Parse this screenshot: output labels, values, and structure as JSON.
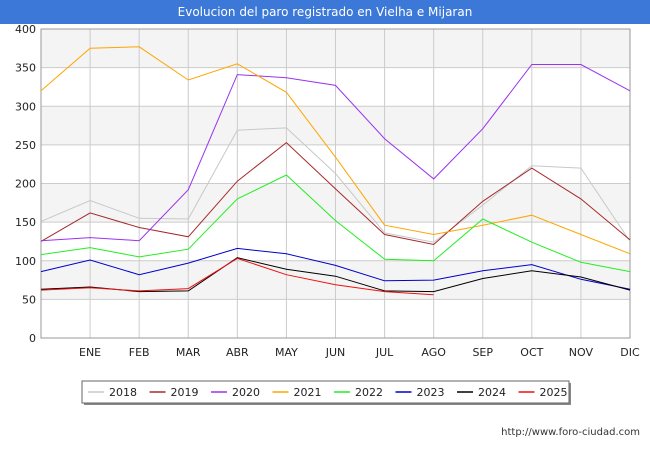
{
  "title": "Evolucion del paro registrado en Vielha e Mijaran",
  "source": "http://www.foro-ciudad.com",
  "colors": {
    "title_bg": "#3b78d8",
    "grid": "#cccccc",
    "band": "#f4f4f4"
  },
  "chart_data": {
    "type": "line",
    "title": "Evolucion del paro registrado en Vielha e Mijaran",
    "x": [
      "",
      "ENE",
      "FEB",
      "MAR",
      "ABR",
      "MAY",
      "JUN",
      "JUL",
      "AGO",
      "SEP",
      "OCT",
      "NOV",
      "DIC"
    ],
    "y_ticks": [
      0,
      50,
      100,
      150,
      200,
      250,
      300,
      350,
      400
    ],
    "ylim": [
      0,
      400
    ],
    "grid": true,
    "legend_position": "bottom",
    "series": [
      {
        "name": "2018",
        "color": "#c8c8c8",
        "values": [
          151,
          178,
          155,
          154,
          269,
          272,
          213,
          136,
          124,
          172,
          223,
          220,
          125
        ]
      },
      {
        "name": "2019",
        "color": "#a52a2a",
        "values": [
          125,
          162,
          143,
          131,
          203,
          253,
          193,
          134,
          121,
          177,
          220,
          180,
          127
        ]
      },
      {
        "name": "2020",
        "color": "#9933ee",
        "values": [
          126,
          130,
          126,
          192,
          341,
          337,
          327,
          258,
          206,
          271,
          354,
          354,
          320
        ]
      },
      {
        "name": "2021",
        "color": "#ffa500",
        "values": [
          320,
          375,
          377,
          334,
          355,
          318,
          234,
          146,
          134,
          146,
          159,
          134,
          109
        ]
      },
      {
        "name": "2022",
        "color": "#22ee22",
        "values": [
          108,
          117,
          105,
          115,
          180,
          211,
          152,
          102,
          100,
          154,
          124,
          98,
          86
        ]
      },
      {
        "name": "2023",
        "color": "#0000cc",
        "values": [
          86,
          101,
          82,
          97,
          116,
          109,
          94,
          74,
          75,
          87,
          95,
          76,
          63
        ]
      },
      {
        "name": "2024",
        "color": "#000000",
        "values": [
          63,
          66,
          60,
          61,
          104,
          89,
          80,
          61,
          60,
          77,
          87,
          79,
          62
        ]
      },
      {
        "name": "2025",
        "color": "#ee1111",
        "values": [
          62,
          65,
          61,
          64,
          103,
          82,
          69,
          60,
          56,
          null,
          null,
          null,
          null
        ]
      }
    ]
  }
}
